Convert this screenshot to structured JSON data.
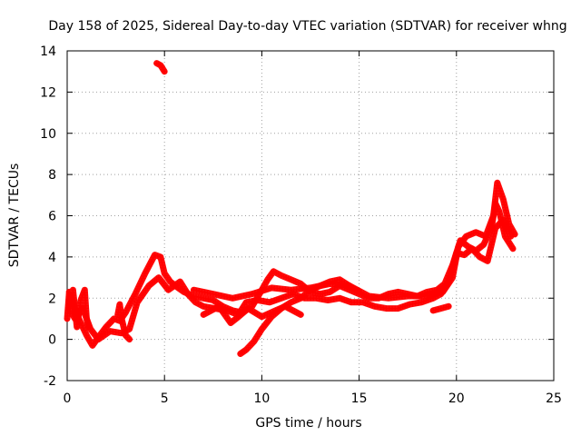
{
  "chart_data": {
    "type": "scatter",
    "title": "Day 158 of 2025, Sidereal Day-to-day VTEC variation (SDTVAR) for receiver whng",
    "xlabel": "GPS time / hours",
    "ylabel": "SDTVAR / TECUs",
    "xlim": [
      0,
      25
    ],
    "ylim": [
      -2,
      14
    ],
    "xticks": [
      0,
      5,
      10,
      15,
      20,
      25
    ],
    "yticks": [
      -2,
      0,
      2,
      4,
      6,
      8,
      10,
      12,
      14
    ],
    "grid": true,
    "marker": "+",
    "series": [
      {
        "name": "SDTVAR",
        "color": "#ff0000",
        "traces": [
          [
            [
              0.0,
              1.0
            ],
            [
              0.1,
              2.2
            ],
            [
              0.3,
              1.8
            ],
            [
              0.5,
              1.2
            ],
            [
              0.7,
              0.8
            ],
            [
              1.0,
              0.2
            ],
            [
              1.3,
              -0.3
            ],
            [
              1.6,
              0.1
            ],
            [
              2.0,
              0.6
            ],
            [
              2.4,
              1.0
            ],
            [
              2.7,
              0.9
            ],
            [
              3.0,
              1.3
            ],
            [
              3.5,
              2.2
            ],
            [
              4.0,
              3.2
            ],
            [
              4.5,
              4.1
            ],
            [
              4.8,
              4.0
            ],
            [
              5.0,
              3.2
            ],
            [
              5.3,
              2.8
            ],
            [
              5.7,
              2.5
            ],
            [
              6.0,
              2.3
            ],
            [
              6.5,
              2.1
            ],
            [
              7.0,
              2.0
            ],
            [
              7.5,
              1.9
            ],
            [
              8.0,
              1.6
            ],
            [
              8.5,
              1.4
            ],
            [
              9.0,
              1.3
            ],
            [
              9.5,
              1.6
            ],
            [
              10.0,
              2.4
            ],
            [
              10.3,
              2.9
            ],
            [
              10.6,
              3.3
            ],
            [
              11.0,
              3.1
            ],
            [
              11.5,
              2.9
            ],
            [
              12.0,
              2.7
            ],
            [
              12.5,
              2.3
            ],
            [
              13.0,
              2.2
            ],
            [
              13.5,
              2.3
            ],
            [
              14.0,
              2.6
            ],
            [
              14.5,
              2.4
            ],
            [
              15.0,
              2.2
            ],
            [
              15.5,
              2.0
            ],
            [
              16.0,
              2.0
            ],
            [
              16.5,
              2.2
            ],
            [
              17.0,
              2.3
            ],
            [
              17.5,
              2.2
            ],
            [
              18.0,
              2.1
            ],
            [
              18.5,
              2.3
            ],
            [
              19.0,
              2.4
            ],
            [
              19.4,
              2.7
            ],
            [
              19.8,
              3.6
            ],
            [
              20.2,
              4.8
            ],
            [
              20.6,
              4.5
            ],
            [
              21.0,
              4.3
            ],
            [
              21.4,
              4.6
            ],
            [
              21.8,
              5.4
            ],
            [
              22.0,
              6.6
            ],
            [
              22.2,
              6.2
            ],
            [
              22.5,
              5.0
            ],
            [
              22.9,
              4.4
            ]
          ],
          [
            [
              0.1,
              1.5
            ],
            [
              0.4,
              1.0
            ],
            [
              0.8,
              1.5
            ],
            [
              1.2,
              0.5
            ],
            [
              1.6,
              0.0
            ],
            [
              2.2,
              0.4
            ],
            [
              2.8,
              0.3
            ],
            [
              3.2,
              0.5
            ],
            [
              3.6,
              1.8
            ],
            [
              4.2,
              2.6
            ],
            [
              4.7,
              3.0
            ],
            [
              5.2,
              2.4
            ],
            [
              5.8,
              2.8
            ],
            [
              6.2,
              2.2
            ],
            [
              6.6,
              1.8
            ],
            [
              7.0,
              1.6
            ],
            [
              7.6,
              1.5
            ],
            [
              8.2,
              1.4
            ],
            [
              8.8,
              1.2
            ],
            [
              9.2,
              1.8
            ],
            [
              9.8,
              1.9
            ],
            [
              10.4,
              1.8
            ],
            [
              11.0,
              2.0
            ],
            [
              11.6,
              2.2
            ],
            [
              12.2,
              2.0
            ],
            [
              12.8,
              2.0
            ],
            [
              13.4,
              1.9
            ],
            [
              14.0,
              2.0
            ],
            [
              14.6,
              1.8
            ],
            [
              15.2,
              1.8
            ],
            [
              15.8,
              1.6
            ],
            [
              16.4,
              1.5
            ],
            [
              17.0,
              1.5
            ],
            [
              17.6,
              1.7
            ],
            [
              18.2,
              1.8
            ],
            [
              18.8,
              2.0
            ],
            [
              19.2,
              2.2
            ],
            [
              19.6,
              2.8
            ],
            [
              20.0,
              4.2
            ],
            [
              20.4,
              4.1
            ],
            [
              20.8,
              4.4
            ],
            [
              21.2,
              4.0
            ],
            [
              21.6,
              3.8
            ],
            [
              22.0,
              5.4
            ],
            [
              22.4,
              5.8
            ],
            [
              22.8,
              5.0
            ]
          ],
          [
            [
              6.5,
              2.4
            ],
            [
              7.5,
              2.2
            ],
            [
              8.5,
              2.0
            ],
            [
              9.5,
              2.2
            ],
            [
              10.5,
              2.5
            ],
            [
              11.5,
              2.4
            ],
            [
              12.5,
              2.5
            ],
            [
              13.5,
              2.7
            ],
            [
              14.5,
              2.6
            ],
            [
              15.5,
              2.1
            ],
            [
              16.5,
              2.0
            ],
            [
              17.5,
              2.1
            ],
            [
              18.5,
              2.1
            ],
            [
              19.3,
              2.3
            ],
            [
              19.8,
              3.0
            ],
            [
              20.1,
              4.5
            ],
            [
              20.5,
              5.0
            ],
            [
              21.0,
              5.2
            ],
            [
              21.5,
              5.0
            ],
            [
              21.9,
              6.0
            ],
            [
              22.1,
              7.6
            ],
            [
              22.4,
              6.8
            ],
            [
              22.7,
              5.6
            ],
            [
              23.0,
              5.1
            ]
          ],
          [
            [
              7.0,
              1.2
            ],
            [
              7.8,
              1.6
            ],
            [
              8.4,
              0.8
            ],
            [
              8.8,
              1.1
            ],
            [
              9.3,
              1.5
            ],
            [
              10.0,
              1.1
            ],
            [
              10.7,
              1.4
            ],
            [
              11.2,
              1.6
            ],
            [
              11.8,
              1.3
            ],
            [
              12.0,
              1.2
            ]
          ],
          [
            [
              8.9,
              -0.7
            ],
            [
              9.2,
              -0.5
            ],
            [
              9.6,
              -0.1
            ],
            [
              10.0,
              0.5
            ],
            [
              10.5,
              1.1
            ],
            [
              11.0,
              1.5
            ],
            [
              11.5,
              1.8
            ],
            [
              12.0,
              2.0
            ],
            [
              12.5,
              2.4
            ],
            [
              13.0,
              2.6
            ],
            [
              13.5,
              2.8
            ],
            [
              14.0,
              2.9
            ],
            [
              14.5,
              2.6
            ],
            [
              15.0,
              2.3
            ]
          ],
          [
            [
              4.6,
              13.4
            ],
            [
              4.8,
              13.3
            ],
            [
              5.0,
              13.0
            ]
          ],
          [
            [
              0.1,
              2.3
            ],
            [
              0.2,
              1.7
            ],
            [
              0.3,
              2.4
            ],
            [
              0.5,
              0.6
            ],
            [
              0.7,
              1.9
            ],
            [
              0.9,
              2.4
            ],
            [
              1.0,
              1.0
            ],
            [
              1.1,
              0.6
            ]
          ],
          [
            [
              2.6,
              1.2
            ],
            [
              2.7,
              1.7
            ],
            [
              2.8,
              1.0
            ],
            [
              3.0,
              0.2
            ],
            [
              3.2,
              0.0
            ]
          ],
          [
            [
              18.8,
              1.4
            ],
            [
              19.2,
              1.5
            ],
            [
              19.6,
              1.6
            ]
          ]
        ]
      }
    ]
  }
}
